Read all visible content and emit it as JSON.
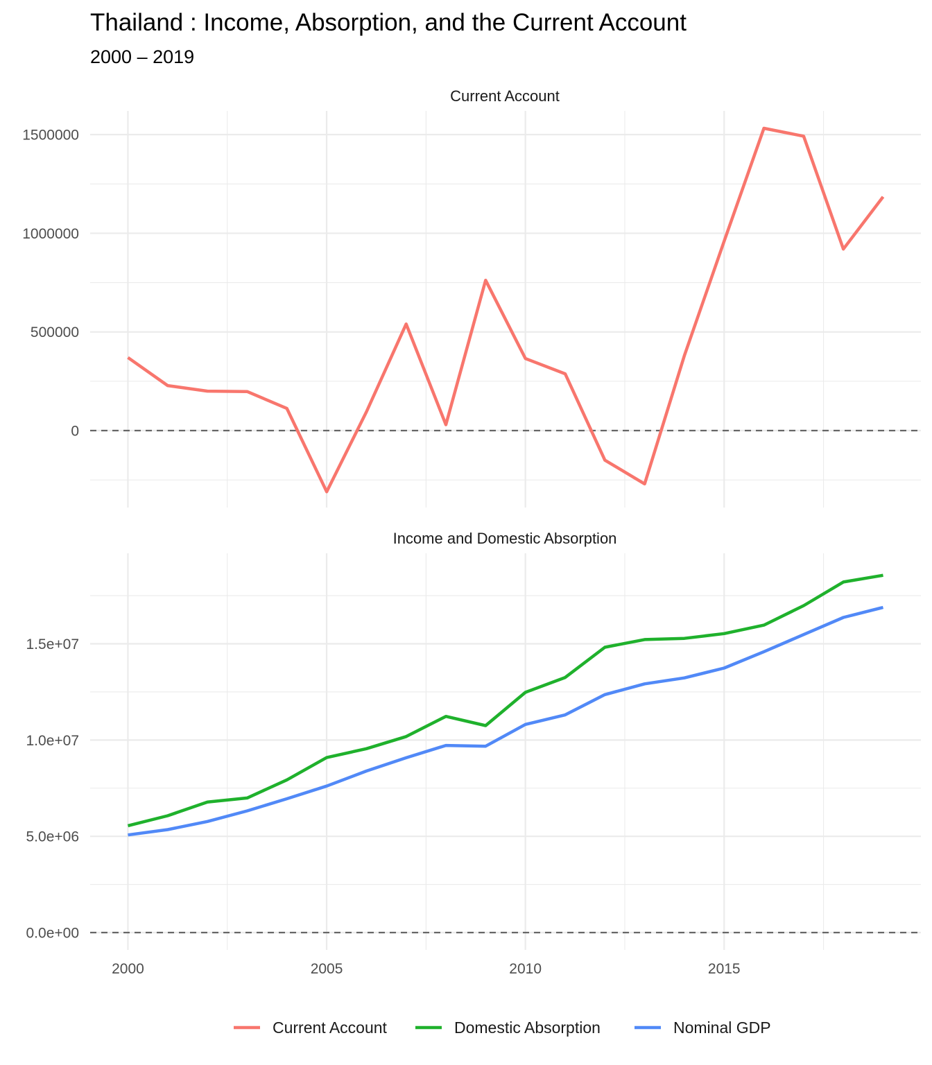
{
  "title": "Thailand : Income, Absorption, and the Current Account",
  "subtitle": "2000 – 2019",
  "chart_data": [
    {
      "type": "line",
      "panel": "Current Account",
      "x": [
        2000,
        2001,
        2002,
        2003,
        2004,
        2005,
        2006,
        2007,
        2008,
        2009,
        2010,
        2011,
        2012,
        2013,
        2014,
        2015,
        2016,
        2017,
        2018,
        2019
      ],
      "series": [
        {
          "name": "Current Account",
          "color": "#F8766D",
          "values": [
            370000,
            228000,
            200000,
            198000,
            112000,
            -310000,
            95000,
            540000,
            30000,
            762000,
            365000,
            288000,
            -150000,
            -270000,
            380000,
            960000,
            1532000,
            1492000,
            920000,
            1185000
          ]
        }
      ],
      "yticks": [
        0,
        500000,
        1000000,
        1500000
      ],
      "ytick_labels": [
        "0",
        "500000",
        "1000000",
        "1500000"
      ],
      "ylim": [
        -390000,
        1620000
      ],
      "reference_line": {
        "y": 0,
        "style": "dashed"
      },
      "grid": true
    },
    {
      "type": "line",
      "panel": "Income and Domestic Absorption",
      "x": [
        2000,
        2001,
        2002,
        2003,
        2004,
        2005,
        2006,
        2007,
        2008,
        2009,
        2010,
        2011,
        2012,
        2013,
        2014,
        2015,
        2016,
        2017,
        2018,
        2019
      ],
      "series": [
        {
          "name": "Domestic Absorption",
          "color": "#1FB12C",
          "values": [
            5550000,
            6070000,
            6780000,
            6990000,
            7930000,
            9090000,
            9550000,
            10180000,
            11230000,
            10750000,
            12480000,
            13250000,
            14820000,
            15220000,
            15280000,
            15530000,
            15970000,
            16980000,
            18210000,
            18560000
          ]
        },
        {
          "name": "Nominal GDP",
          "color": "#5189F7",
          "values": [
            5070000,
            5350000,
            5770000,
            6320000,
            6950000,
            7610000,
            8390000,
            9080000,
            9720000,
            9680000,
            10810000,
            11310000,
            12360000,
            12920000,
            13230000,
            13740000,
            14590000,
            15480000,
            16370000,
            16890000
          ]
        }
      ],
      "yticks": [
        0,
        5000000,
        10000000,
        15000000
      ],
      "ytick_labels": [
        "0.0e+00",
        "5.0e+06",
        "1.0e+07",
        "1.5e+07"
      ],
      "ylim": [
        -900000,
        19700000
      ],
      "reference_line": {
        "y": 0,
        "style": "dashed"
      },
      "grid": true
    }
  ],
  "x_axis": {
    "ticks": [
      2000,
      2005,
      2010,
      2015
    ],
    "labels": [
      "2000",
      "2005",
      "2010",
      "2015"
    ]
  },
  "legend": {
    "position": "bottom",
    "items": [
      {
        "label": "Current Account",
        "color": "#F8766D"
      },
      {
        "label": "Domestic Absorption",
        "color": "#1FB12C"
      },
      {
        "label": "Nominal GDP",
        "color": "#5189F7"
      }
    ]
  }
}
